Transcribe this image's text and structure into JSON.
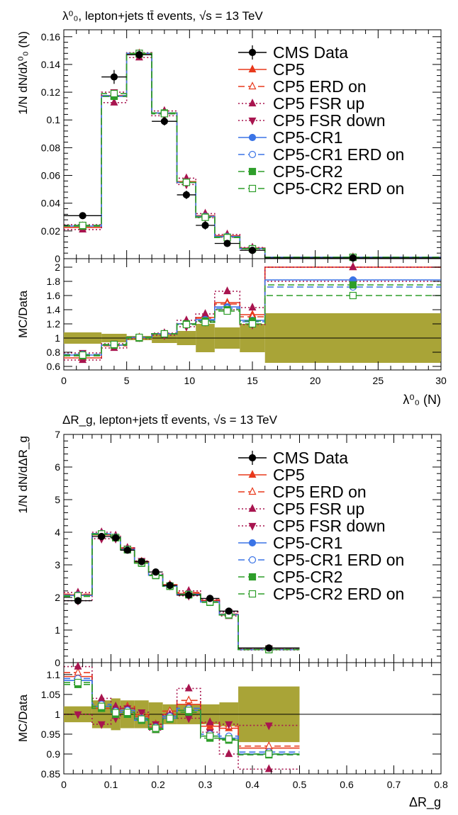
{
  "chart_data": [
    {
      "type": "line",
      "title": "λ⁰₀, lepton+jets tt̄ events, √s = 13 TeV",
      "xlabel": "λ⁰₀ (N)",
      "ylabel": "1/N dN/dλ⁰₀ (N)",
      "ratio_ylabel": "MC/Data",
      "x_edges": [
        0,
        3,
        5,
        7,
        9,
        10.5,
        12,
        14,
        16,
        30
      ],
      "x_centers": [
        1.5,
        4,
        6,
        8,
        9.75,
        11.25,
        13,
        15,
        23
      ],
      "xlim": [
        0,
        30
      ],
      "ylim": [
        0,
        0.165
      ],
      "ratio_ylim": [
        0.55,
        2.12
      ],
      "x_ticks": [
        0,
        5,
        10,
        15,
        20,
        25,
        30
      ],
      "x_tick_labels": [
        "0",
        "5",
        "10",
        "15",
        "20",
        "25",
        "30"
      ],
      "y_ticks": [
        0,
        0.02,
        0.04,
        0.06,
        0.08,
        0.1,
        0.12,
        0.14,
        0.16
      ],
      "y_tick_labels": [
        "0",
        "0.02",
        "0.04",
        "0.06",
        "0.08",
        "0.1",
        "0.12",
        "0.14",
        "0.16"
      ],
      "ratio_ticks": [
        0.6,
        0.8,
        1,
        1.2,
        1.4,
        1.6,
        1.8,
        2
      ],
      "ratio_tick_labels": [
        "0.6",
        "0.8",
        "1",
        "1.2",
        "1.4",
        "1.6",
        "1.8",
        "2"
      ],
      "data": {
        "name": "CMS Data",
        "values": [
          0.031,
          0.131,
          0.147,
          0.099,
          0.046,
          0.024,
          0.011,
          0.006,
          0.0005
        ],
        "errors": [
          0.002,
          0.005,
          0.003,
          0.003,
          0.003,
          0.003,
          0.001,
          0.001,
          0.0002
        ]
      },
      "ratio_band": [
        0.08,
        0.06,
        0.03,
        0.07,
        0.1,
        0.2,
        0.15,
        0.2,
        0.35
      ],
      "series": [
        {
          "name": "CP5",
          "values": [
            0.0225,
            0.1175,
            0.1475,
            0.105,
            0.0555,
            0.031,
            0.0165,
            0.0075,
            0.001
          ],
          "ratio": [
            0.72,
            0.9,
            1.0,
            1.06,
            1.2,
            1.29,
            1.5,
            1.33,
            2.0
          ]
        },
        {
          "name": "CP5 ERD on",
          "values": [
            0.0235,
            0.117,
            0.148,
            0.1045,
            0.0555,
            0.031,
            0.0165,
            0.0077,
            0.001
          ],
          "ratio": [
            0.75,
            0.89,
            1.01,
            1.06,
            1.2,
            1.28,
            1.48,
            1.3,
            2.0
          ]
        },
        {
          "name": "CP5 FSR up",
          "values": [
            0.021,
            0.1125,
            0.145,
            0.1065,
            0.058,
            0.0325,
            0.0175,
            0.008,
            0.001
          ],
          "ratio": [
            0.69,
            0.86,
            0.99,
            1.07,
            1.25,
            1.34,
            1.66,
            1.43,
            2.0
          ]
        },
        {
          "name": "CP5 FSR down",
          "values": [
            0.0245,
            0.12,
            0.1485,
            0.103,
            0.0535,
            0.0295,
            0.0155,
            0.007,
            0.001
          ],
          "ratio": [
            0.79,
            0.92,
            1.01,
            1.04,
            1.16,
            1.23,
            1.4,
            1.19,
            1.8
          ]
        },
        {
          "name": "CP5-CR1",
          "values": [
            0.0235,
            0.117,
            0.148,
            0.105,
            0.055,
            0.0305,
            0.016,
            0.0073,
            0.001
          ],
          "ratio": [
            0.76,
            0.9,
            1.01,
            1.06,
            1.2,
            1.26,
            1.44,
            1.25,
            1.82
          ]
        },
        {
          "name": "CP5-CR1 ERD on",
          "values": [
            0.024,
            0.1175,
            0.148,
            0.1045,
            0.055,
            0.0302,
            0.0158,
            0.0072,
            0.001
          ],
          "ratio": [
            0.77,
            0.9,
            1.01,
            1.06,
            1.2,
            1.25,
            1.42,
            1.23,
            1.72
          ]
        },
        {
          "name": "CP5-CR2",
          "values": [
            0.0235,
            0.117,
            0.1475,
            0.105,
            0.055,
            0.03,
            0.0155,
            0.0072,
            0.001
          ],
          "ratio": [
            0.75,
            0.9,
            1.0,
            1.06,
            1.2,
            1.24,
            1.4,
            1.24,
            1.75
          ]
        },
        {
          "name": "CP5-CR2 ERD on",
          "values": [
            0.024,
            0.119,
            0.148,
            0.1045,
            0.055,
            0.0298,
            0.0152,
            0.0071,
            0.001
          ],
          "ratio": [
            0.76,
            0.91,
            1.01,
            1.06,
            1.19,
            1.22,
            1.38,
            1.2,
            1.6
          ]
        }
      ]
    },
    {
      "type": "line",
      "title": "ΔR_g, lepton+jets tt̄ events, √s = 13 TeV",
      "xlabel": "ΔR_g",
      "ylabel": "1/N dN/dΔR_g",
      "ratio_ylabel": "MC/Data",
      "x_edges": [
        0,
        0.06,
        0.1,
        0.12,
        0.15,
        0.18,
        0.21,
        0.24,
        0.29,
        0.33,
        0.37,
        0.5
      ],
      "x_centers": [
        0.03,
        0.08,
        0.11,
        0.135,
        0.165,
        0.195,
        0.225,
        0.265,
        0.31,
        0.35,
        0.435
      ],
      "xlim": [
        0,
        0.8
      ],
      "ylim": [
        0,
        7
      ],
      "ratio_ylim": [
        0.85,
        1.13
      ],
      "x_ticks": [
        0,
        0.1,
        0.2,
        0.3,
        0.4,
        0.5,
        0.6,
        0.7,
        0.8
      ],
      "x_tick_labels": [
        "0",
        "0.1",
        "0.2",
        "0.3",
        "0.4",
        "0.5",
        "0.6",
        "0.7",
        "0.8"
      ],
      "y_ticks": [
        0,
        1,
        2,
        3,
        4,
        5,
        6,
        7
      ],
      "y_tick_labels": [
        "0",
        "1",
        "2",
        "3",
        "4",
        "5",
        "6",
        "7"
      ],
      "ratio_ticks": [
        0.85,
        0.9,
        0.95,
        1,
        1.05,
        1.1
      ],
      "ratio_tick_labels": [
        "0.85",
        "0.9",
        "0.95",
        "1",
        "1.05",
        "1.1"
      ],
      "data": {
        "name": "CMS Data",
        "values": [
          1.9,
          3.87,
          3.83,
          3.45,
          3.1,
          2.78,
          2.37,
          2.07,
          1.97,
          1.58,
          0.45
        ],
        "errors": [
          0.04,
          0.08,
          0.07,
          0.06,
          0.05,
          0.05,
          0.05,
          0.04,
          0.04,
          0.04,
          0.02
        ]
      },
      "ratio_band": [
        0.02,
        0.035,
        0.04,
        0.035,
        0.035,
        0.03,
        0.025,
        0.025,
        0.025,
        0.03,
        0.07
      ],
      "series": [
        {
          "name": "CP5",
          "values": [
            2.08,
            3.92,
            3.86,
            3.5,
            3.08,
            2.69,
            2.37,
            2.12,
            1.91,
            1.48,
            0.41
          ],
          "ratio": [
            1.095,
            1.015,
            1.01,
            1.015,
            0.995,
            0.968,
            1.0,
            1.025,
            0.97,
            0.965,
            0.915
          ]
        },
        {
          "name": "CP5 ERD on",
          "values": [
            2.1,
            3.95,
            3.88,
            3.52,
            3.1,
            2.71,
            2.39,
            2.15,
            1.93,
            1.49,
            0.42
          ],
          "ratio": [
            1.105,
            1.02,
            1.013,
            1.02,
            1.0,
            0.975,
            1.008,
            1.035,
            0.978,
            0.97,
            0.92
          ]
        },
        {
          "name": "CP5 FSR up",
          "values": [
            2.15,
            4.0,
            3.9,
            3.52,
            3.08,
            2.68,
            2.37,
            2.2,
            1.93,
            1.43,
            0.39
          ],
          "ratio": [
            1.12,
            1.04,
            1.02,
            1.015,
            0.99,
            0.96,
            1.0,
            1.065,
            0.98,
            0.9,
            0.862
          ]
        },
        {
          "name": "CP5 FSR down",
          "values": [
            1.9,
            3.8,
            3.8,
            3.5,
            3.12,
            2.72,
            2.36,
            2.05,
            1.88,
            1.55,
            0.44
          ],
          "ratio": [
            1.0,
            0.975,
            0.99,
            1.015,
            1.005,
            0.975,
            0.997,
            0.99,
            0.955,
            0.975,
            0.972
          ]
        },
        {
          "name": "CP5-CR1",
          "values": [
            2.06,
            3.95,
            3.84,
            3.47,
            3.05,
            2.68,
            2.35,
            2.09,
            1.86,
            1.47,
            0.4
          ],
          "ratio": [
            1.085,
            1.02,
            1.005,
            1.005,
            0.985,
            0.965,
            0.99,
            1.01,
            0.945,
            0.94,
            0.9
          ]
        },
        {
          "name": "CP5-CR1 ERD on",
          "values": [
            2.07,
            3.96,
            3.85,
            3.48,
            3.06,
            2.69,
            2.36,
            2.1,
            1.87,
            1.48,
            0.41
          ],
          "ratio": [
            1.09,
            1.025,
            1.008,
            1.01,
            0.99,
            0.968,
            0.995,
            1.015,
            0.95,
            0.945,
            0.905
          ]
        },
        {
          "name": "CP5-CR2",
          "values": [
            2.03,
            3.93,
            3.83,
            3.46,
            3.05,
            2.67,
            2.34,
            2.08,
            1.85,
            1.46,
            0.4
          ],
          "ratio": [
            1.075,
            1.015,
            1.0,
            1.0,
            0.985,
            0.962,
            0.988,
            1.005,
            0.94,
            0.935,
            0.898
          ]
        },
        {
          "name": "CP5-CR2 ERD on",
          "values": [
            2.05,
            3.95,
            3.84,
            3.47,
            3.06,
            2.68,
            2.35,
            2.09,
            1.86,
            1.47,
            0.4
          ],
          "ratio": [
            1.08,
            1.02,
            1.004,
            1.005,
            0.988,
            0.965,
            0.99,
            1.01,
            0.945,
            0.938,
            0.9
          ]
        }
      ]
    }
  ],
  "legend": [
    {
      "name": "CMS Data",
      "color": "#000000",
      "dash": "solid",
      "marker": "circle-filled"
    },
    {
      "name": "CP5",
      "color": "#e8391c",
      "dash": "solid",
      "marker": "triangle-up-filled"
    },
    {
      "name": "CP5 ERD on",
      "color": "#e8391c",
      "dash": "dashed",
      "marker": "triangle-up-open"
    },
    {
      "name": "CP5 FSR up",
      "color": "#a8154f",
      "dash": "dotted",
      "marker": "triangle-up-filled"
    },
    {
      "name": "CP5 FSR down",
      "color": "#a8154f",
      "dash": "dotted",
      "marker": "triangle-down-filled"
    },
    {
      "name": "CP5-CR1",
      "color": "#3b74e6",
      "dash": "solid",
      "marker": "circle-filled"
    },
    {
      "name": "CP5-CR1 ERD on",
      "color": "#3b74e6",
      "dash": "dashed",
      "marker": "circle-open"
    },
    {
      "name": "CP5-CR2",
      "color": "#2e9e2a",
      "dash": "dashed",
      "marker": "square-filled"
    },
    {
      "name": "CP5-CR2 ERD on",
      "color": "#2e9e2a",
      "dash": "dashed",
      "marker": "square-open"
    }
  ],
  "colors": {
    "band": "#a9a437",
    "data": "#000000"
  }
}
